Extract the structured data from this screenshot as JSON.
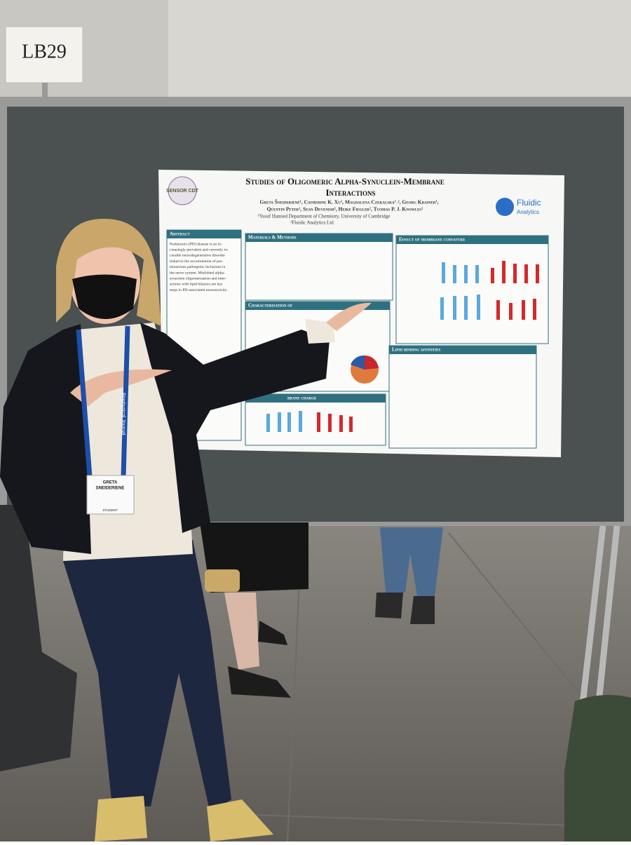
{
  "sign": {
    "label": "LB29"
  },
  "poster": {
    "title_line1": "Studies of Oligomeric Alpha-Synuclein-Membrane",
    "title_line2": "Interactions",
    "authors_line1": "Greta Šneiderienė¹, Catherine K. Xu¹, Magdalena Czekalska¹˒², Georg Krainer¹,",
    "authors_line2": "Quentin Peter¹, Sean Devenish², Heike Fiegler², Tuomas P. J. Knowles¹",
    "affiliation1": "¹Yusuf Hamied Department of Chemistry, University of Cambridge",
    "affiliation2": "²Fluidic Analytics Ltd",
    "logo_left": "SENSOR CDT",
    "logo_right_1": "Fluidic",
    "logo_right_2": "Analytics",
    "sections": [
      "Abstract",
      "Materials & Methods",
      "Effect of membrane curvature",
      "Characterisation of",
      "Lipid binding affinities",
      "brane charge"
    ],
    "abstract_lines": [
      "Parkinson's (PD) disease is an in-",
      "creasingly prevalent and currently in-",
      "curable neurodegenerative disorder",
      "linked to the accumulation of pro-",
      "teinaceous pathogenic inclusions in",
      "the nerve system. Misfolded alpha-",
      "synuclein oligomerisation and inter-",
      "actions with lipid bilayers are key",
      "steps in PD-associated neurotoxicity."
    ]
  },
  "badge": {
    "name_line1": "GRETA",
    "name_line2": "SNEIDERIENE",
    "role": "STUDENT"
  },
  "lanyard": {
    "text": "Biophysical Journal"
  }
}
